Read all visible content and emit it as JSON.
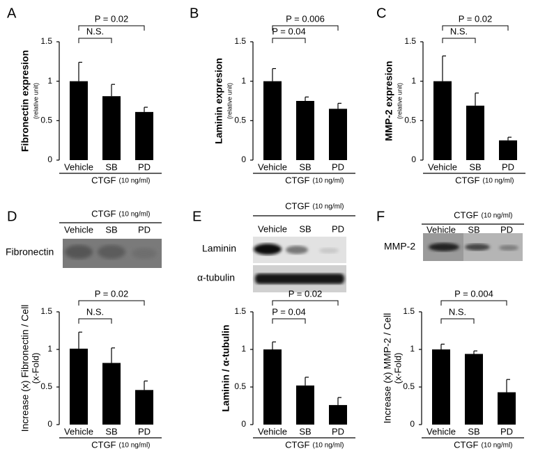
{
  "chart_data": [
    {
      "type": "bar",
      "panel": "A",
      "ylabel": "Fibronectin expresion",
      "ylabel_note": "(relative unit)",
      "ylabel_bold": true,
      "categories": [
        "Vehicle",
        "SB",
        "PD"
      ],
      "values": [
        1.0,
        0.81,
        0.61
      ],
      "errors": [
        0.24,
        0.15,
        0.06
      ],
      "color": "#000000",
      "ylim": [
        0,
        1.5
      ],
      "yticks": [
        0,
        0.5,
        1,
        1.5
      ],
      "annotations": [
        "P = 0.02",
        "N.S."
      ],
      "group_label": "CTGF",
      "group_note": "(10 ng/ml)"
    },
    {
      "type": "bar",
      "panel": "B",
      "ylabel": "Laminin expresion",
      "ylabel_note": "(relative unit)",
      "ylabel_bold": true,
      "categories": [
        "Vehicle",
        "SB",
        "PD"
      ],
      "values": [
        1.0,
        0.75,
        0.65
      ],
      "errors": [
        0.16,
        0.05,
        0.07
      ],
      "color": "#000000",
      "ylim": [
        0,
        1.5
      ],
      "yticks": [
        0,
        0.5,
        1,
        1.5
      ],
      "annotations": [
        "P = 0.006",
        "P = 0.04"
      ],
      "group_label": "CTGF",
      "group_note": "(10 ng/ml)"
    },
    {
      "type": "bar",
      "panel": "C",
      "ylabel": "MMP-2 expresion",
      "ylabel_note": "(relative unit)",
      "ylabel_bold": true,
      "categories": [
        "Vehicle",
        "SB",
        "PD"
      ],
      "values": [
        1.0,
        0.69,
        0.25
      ],
      "errors": [
        0.32,
        0.16,
        0.04
      ],
      "color": "#000000",
      "ylim": [
        0,
        1.5
      ],
      "yticks": [
        0,
        0.5,
        1,
        1.5
      ],
      "annotations": [
        "P = 0.02",
        "N.S."
      ],
      "group_label": "CTGF",
      "group_note": "(10 ng/ml)"
    },
    {
      "type": "bar",
      "panel": "D",
      "ylabel": "Increase (x) Fibronectin / Cell",
      "ylabel_note": "(x-Fold)",
      "ylabel_bold": false,
      "categories": [
        "Vehicle",
        "SB",
        "PD"
      ],
      "values": [
        1.01,
        0.82,
        0.46
      ],
      "errors": [
        0.22,
        0.2,
        0.12
      ],
      "color": "#000000",
      "ylim": [
        0,
        1.5
      ],
      "yticks": [
        0,
        0.5,
        1,
        1.5
      ],
      "annotations": [
        "P = 0.02",
        "N.S."
      ],
      "group_label": "CTGF",
      "group_note": "(10 ng/ml)",
      "blot": {
        "group_label": "CTGF",
        "group_note": "(10 ng/ml)",
        "categories": [
          "Vehicle",
          "SB",
          "PD"
        ],
        "rows": [
          "Fibronectin"
        ]
      }
    },
    {
      "type": "bar",
      "panel": "E",
      "ylabel": "Laminin / α-tubulin",
      "ylabel_bold": true,
      "categories": [
        "Vehicle",
        "SB",
        "PD"
      ],
      "values": [
        1.0,
        0.52,
        0.26
      ],
      "errors": [
        0.1,
        0.11,
        0.1
      ],
      "color": "#000000",
      "ylim": [
        0,
        1.5
      ],
      "yticks": [
        0,
        0.5,
        1,
        1.5
      ],
      "annotations": [
        "P = 0.02",
        "P = 0.04"
      ],
      "group_label": "CTGF",
      "group_note": "(10 ng/ml)",
      "blot": {
        "group_label": "CTGF",
        "group_note": "(10 ng/ml)",
        "categories": [
          "Vehicle",
          "SB",
          "PD"
        ],
        "rows": [
          "Laminin",
          "α-tubulin"
        ]
      }
    },
    {
      "type": "bar",
      "panel": "F",
      "ylabel": "Increase (x) MMP-2 / Cell",
      "ylabel_note": "(x-Fold)",
      "ylabel_bold": false,
      "categories": [
        "Vehicle",
        "SB",
        "PD"
      ],
      "values": [
        1.0,
        0.94,
        0.43
      ],
      "errors": [
        0.07,
        0.04,
        0.17
      ],
      "color": "#000000",
      "ylim": [
        0,
        1.5
      ],
      "yticks": [
        0,
        0.5,
        1,
        1.5
      ],
      "annotations": [
        "P = 0.004",
        "N.S."
      ],
      "group_label": "CTGF",
      "group_note": "(10 ng/ml)",
      "blot": {
        "group_label": "CTGF",
        "group_note": "(10 ng/ml)",
        "categories": [
          "Vehicle",
          "SB",
          "PD"
        ],
        "rows": [
          "MMP-2"
        ]
      }
    }
  ]
}
